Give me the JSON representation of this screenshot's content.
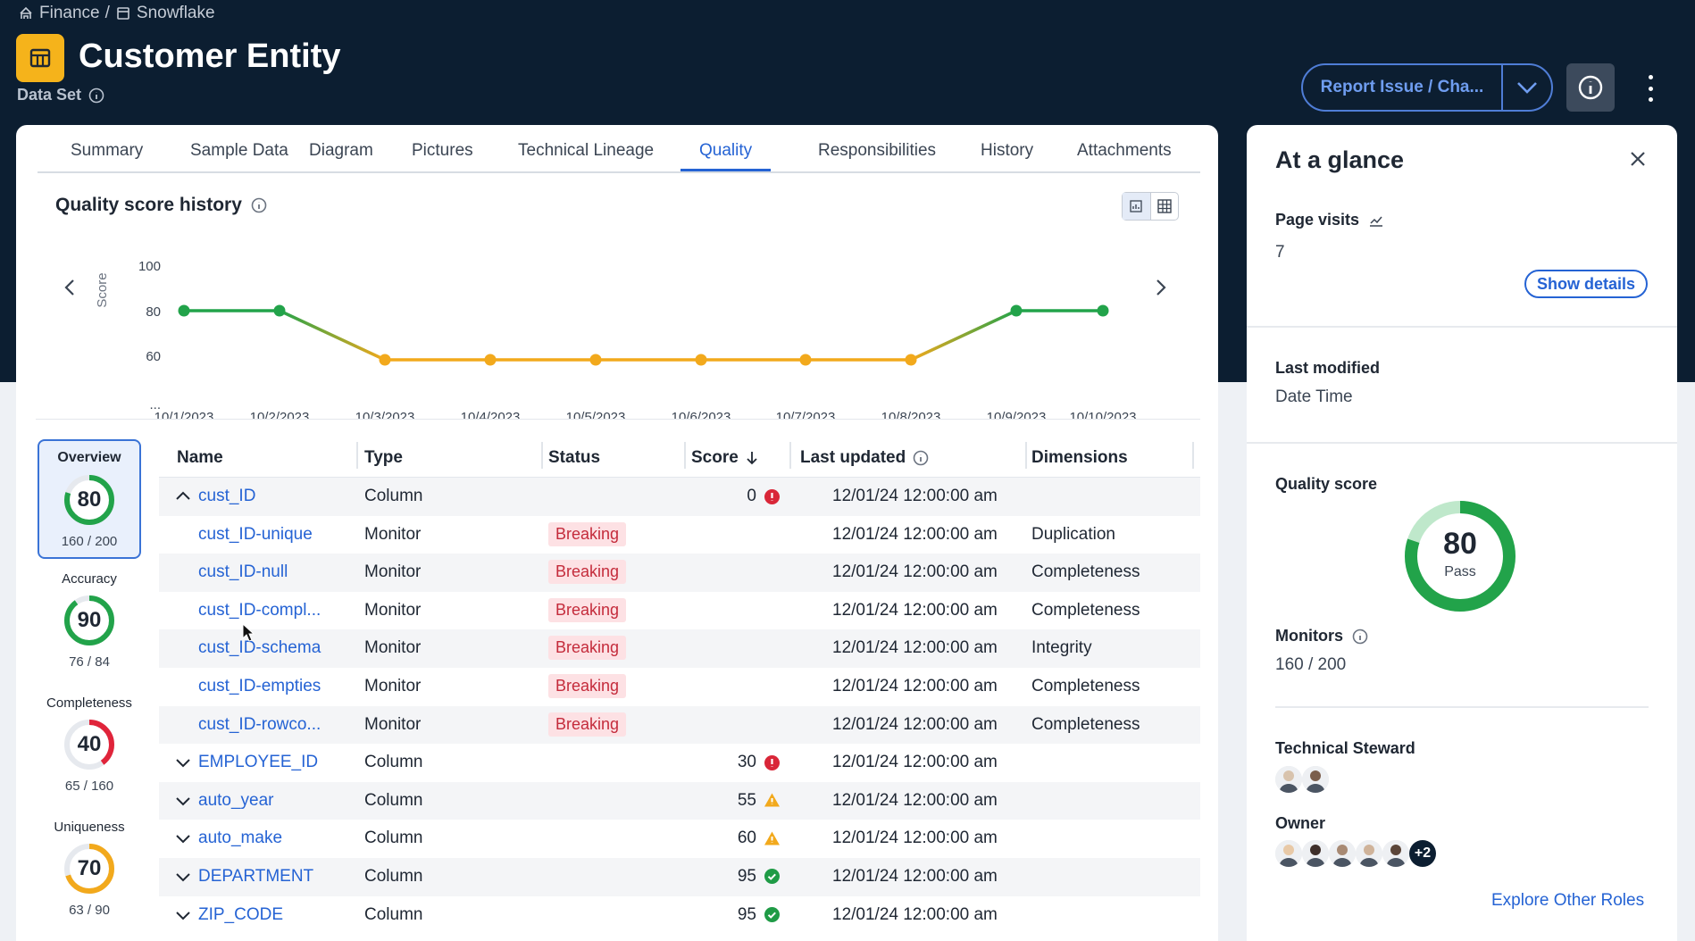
{
  "breadcrumb": {
    "domain": "Finance",
    "separator": "/",
    "source": "Snowflake"
  },
  "header": {
    "title": "Customer Entity",
    "subtitle": "Data Set",
    "report_button": "Report Issue / Cha..."
  },
  "tabs": [
    {
      "label": "Summary",
      "active": false
    },
    {
      "label": "Sample Data",
      "active": false
    },
    {
      "label": "Diagram",
      "active": false
    },
    {
      "label": "Pictures",
      "active": false
    },
    {
      "label": "Technical Lineage",
      "active": false
    },
    {
      "label": "Quality",
      "active": true
    },
    {
      "label": "Responsibilities",
      "active": false
    },
    {
      "label": "History",
      "active": false
    },
    {
      "label": "Attachments",
      "active": false
    }
  ],
  "quality_history": {
    "title": "Quality score history"
  },
  "chart_data": {
    "type": "line",
    "title": "Quality score history",
    "ylabel": "Score",
    "xlabel": "",
    "y_ticks": [
      "100",
      "80",
      "60",
      "..."
    ],
    "ylim": [
      40,
      100
    ],
    "x": [
      "10/1/2023",
      "10/2/2023",
      "10/3/2023",
      "10/4/2023",
      "10/5/2023",
      "10/6/2023",
      "10/7/2023",
      "10/8/2023",
      "10/9/2023",
      "10/10/2023"
    ],
    "values": [
      80,
      80,
      58,
      58,
      58,
      58,
      58,
      58,
      80,
      80
    ],
    "colors": {
      "high": "#22a34a",
      "low": "#f2a91c"
    }
  },
  "scorecards": [
    {
      "label": "Overview",
      "score": "80",
      "fraction": "160 / 200",
      "value": 0.8,
      "color": "#22a34a",
      "active": true
    },
    {
      "label": "Accuracy",
      "score": "90",
      "fraction": "76 / 84",
      "value": 0.9,
      "color": "#22a34a",
      "active": false
    },
    {
      "label": "Completeness",
      "score": "40",
      "fraction": "65 / 160",
      "value": 0.4,
      "color": "#e0243a",
      "active": false
    },
    {
      "label": "Uniqueness",
      "score": "70",
      "fraction": "63 / 90",
      "value": 0.7,
      "color": "#f2a91c",
      "active": false
    }
  ],
  "table": {
    "columns": [
      "Name",
      "Type",
      "Status",
      "Score",
      "Last updated",
      "Dimensions"
    ],
    "rows": [
      {
        "name": "cust_ID",
        "type": "Column",
        "status": "",
        "score": "0",
        "score_icon": "error",
        "updated": "12/01/24 12:00:00 am",
        "dimension": "",
        "level": 0,
        "expanded": true
      },
      {
        "name": "cust_ID-unique",
        "type": "Monitor",
        "status": "Breaking",
        "score": "",
        "score_icon": "",
        "updated": "12/01/24 12:00:00 am",
        "dimension": "Duplication",
        "level": 1
      },
      {
        "name": "cust_ID-null",
        "type": "Monitor",
        "status": "Breaking",
        "score": "",
        "score_icon": "",
        "updated": "12/01/24 12:00:00 am",
        "dimension": "Completeness",
        "level": 1
      },
      {
        "name": "cust_ID-compl...",
        "type": "Monitor",
        "status": "Breaking",
        "score": "",
        "score_icon": "",
        "updated": "12/01/24 12:00:00 am",
        "dimension": "Completeness",
        "level": 1
      },
      {
        "name": "cust_ID-schema",
        "type": "Monitor",
        "status": "Breaking",
        "score": "",
        "score_icon": "",
        "updated": "12/01/24 12:00:00 am",
        "dimension": "Integrity",
        "level": 1
      },
      {
        "name": "cust_ID-empties",
        "type": "Monitor",
        "status": "Breaking",
        "score": "",
        "score_icon": "",
        "updated": "12/01/24 12:00:00 am",
        "dimension": "Completeness",
        "level": 1
      },
      {
        "name": "cust_ID-rowco...",
        "type": "Monitor",
        "status": "Breaking",
        "score": "",
        "score_icon": "",
        "updated": "12/01/24 12:00:00 am",
        "dimension": "Completeness",
        "level": 1
      },
      {
        "name": "EMPLOYEE_ID",
        "type": "Column",
        "status": "",
        "score": "30",
        "score_icon": "error",
        "updated": "12/01/24 12:00:00 am",
        "dimension": "",
        "level": 0,
        "expanded": false
      },
      {
        "name": "auto_year",
        "type": "Column",
        "status": "",
        "score": "55",
        "score_icon": "warning",
        "updated": "12/01/24 12:00:00 am",
        "dimension": "",
        "level": 0,
        "expanded": false
      },
      {
        "name": "auto_make",
        "type": "Column",
        "status": "",
        "score": "60",
        "score_icon": "warning",
        "updated": "12/01/24 12:00:00 am",
        "dimension": "",
        "level": 0,
        "expanded": false
      },
      {
        "name": "DEPARTMENT",
        "type": "Column",
        "status": "",
        "score": "95",
        "score_icon": "ok",
        "updated": "12/01/24 12:00:00 am",
        "dimension": "",
        "level": 0,
        "expanded": false
      },
      {
        "name": "ZIP_CODE",
        "type": "Column",
        "status": "",
        "score": "95",
        "score_icon": "ok",
        "updated": "12/01/24 12:00:00 am",
        "dimension": "",
        "level": 0,
        "expanded": false
      }
    ]
  },
  "glance": {
    "title": "At a glance",
    "page_visits_label": "Page visits",
    "page_visits_value": "7",
    "show_details": "Show details",
    "last_modified_label": "Last modified",
    "last_modified_value": "Date Time",
    "quality_score_label": "Quality score",
    "quality_score_value": "80",
    "quality_score_fill": 0.8,
    "quality_score_status": "Pass",
    "monitors_label": "Monitors",
    "monitors_value": "160 / 200",
    "technical_steward_label": "Technical Steward",
    "owner_label": "Owner",
    "owner_more": "+2",
    "explore_link": "Explore Other Roles"
  }
}
